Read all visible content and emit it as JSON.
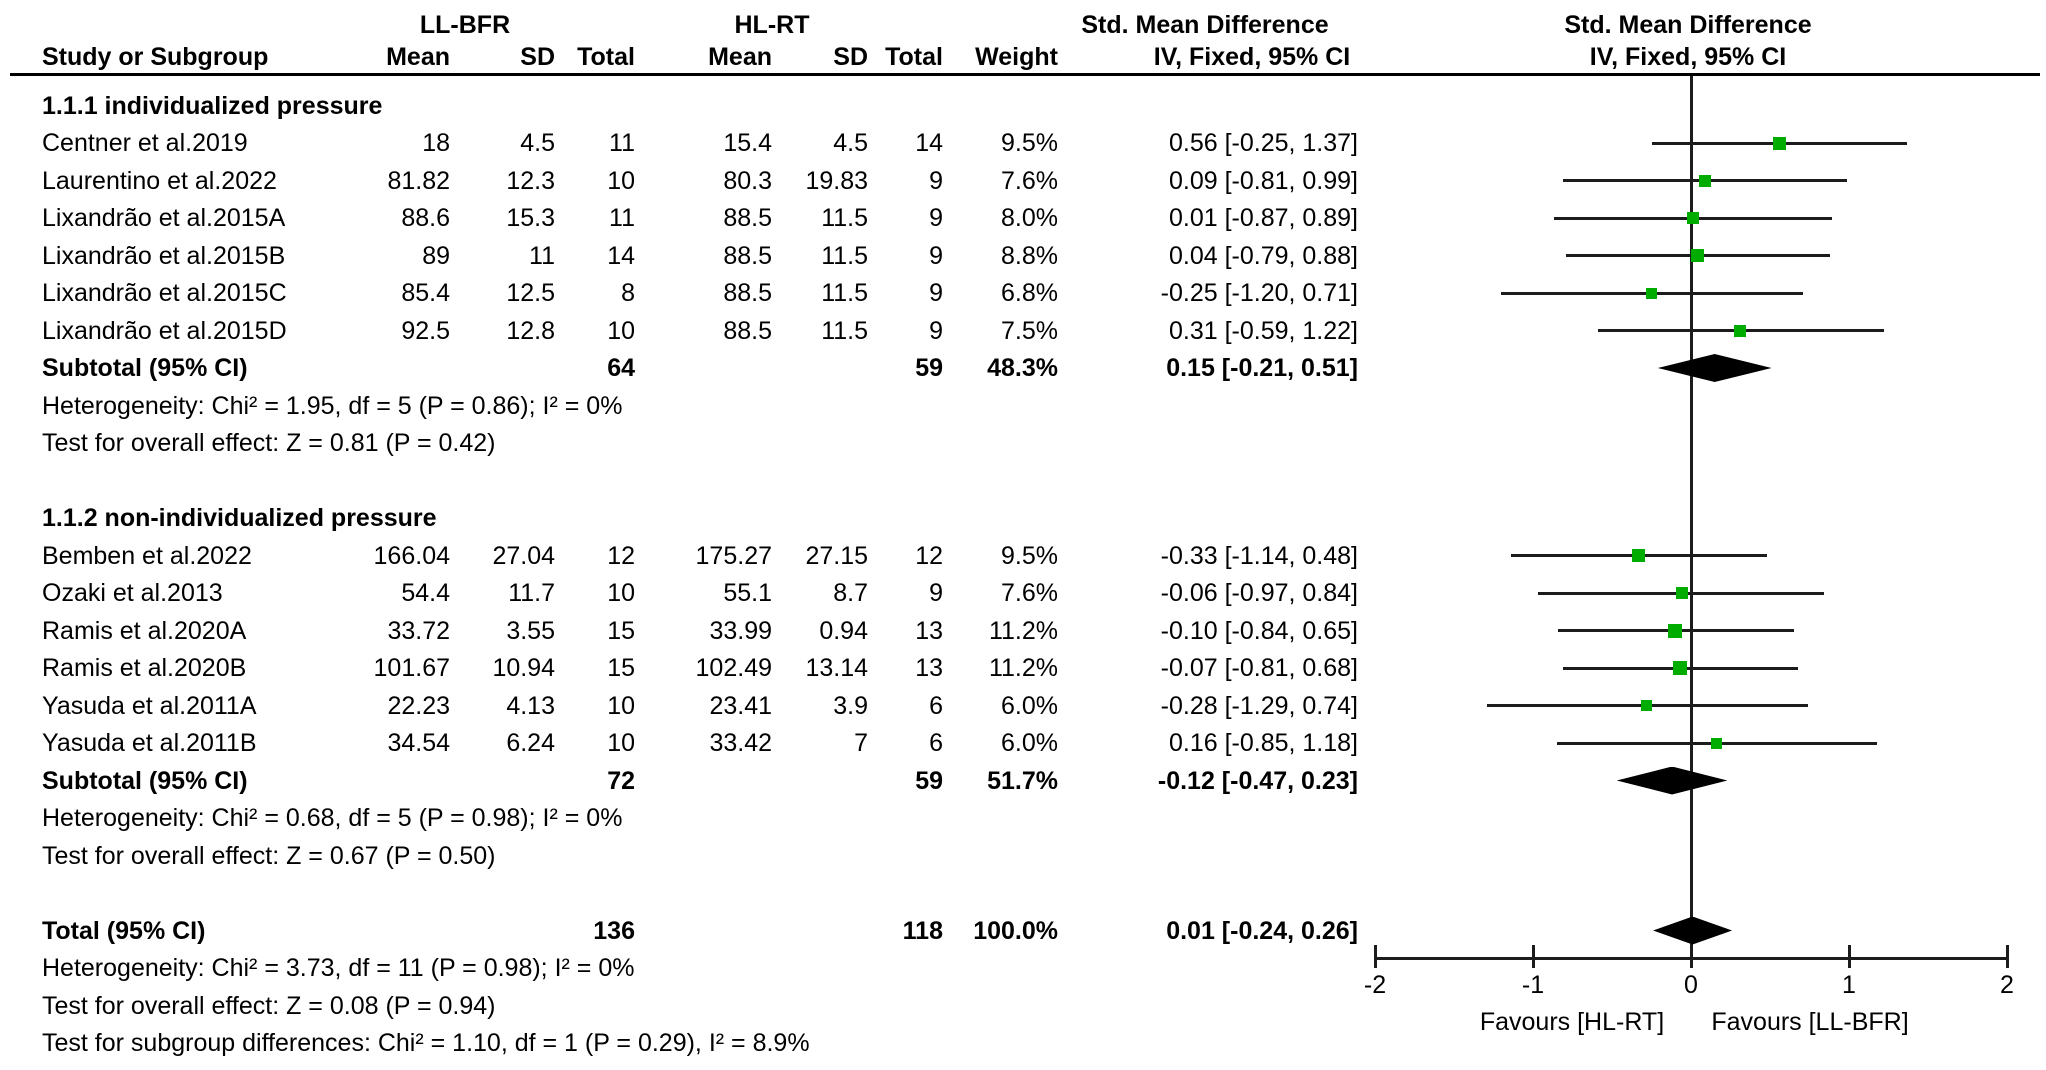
{
  "header": {
    "group1_label": "LL-BFR",
    "group2_label": "HL-RT",
    "study_col": "Study or Subgroup",
    "mean_col": "Mean",
    "sd_col": "SD",
    "total_col": "Total",
    "weight_col": "Weight",
    "smd_col_title": "Std. Mean Difference",
    "smd_col_subtitle": "IV, Fixed, 95% CI",
    "plot_col_title": "Std. Mean Difference",
    "plot_col_subtitle": "IV, Fixed, 95% CI"
  },
  "groups": [
    {
      "name": "1.1.1 individualized pressure",
      "studies": [
        {
          "name": "Centner et al.2019",
          "mean1": "18",
          "sd1": "4.5",
          "total1": "11",
          "mean2": "15.4",
          "sd2": "4.5",
          "total2": "14",
          "weight": "9.5%",
          "smd_text": "0.56 [-0.25, 1.37]",
          "est": 0.56,
          "lo": -0.25,
          "hi": 1.37,
          "weight_pct": 9.5
        },
        {
          "name": "Laurentino et al.2022",
          "mean1": "81.82",
          "sd1": "12.3",
          "total1": "10",
          "mean2": "80.3",
          "sd2": "19.83",
          "total2": "9",
          "weight": "7.6%",
          "smd_text": "0.09 [-0.81, 0.99]",
          "est": 0.09,
          "lo": -0.81,
          "hi": 0.99,
          "weight_pct": 7.6
        },
        {
          "name": "Lixandrão et al.2015A",
          "mean1": "88.6",
          "sd1": "15.3",
          "total1": "11",
          "mean2": "88.5",
          "sd2": "11.5",
          "total2": "9",
          "weight": "8.0%",
          "smd_text": "0.01 [-0.87, 0.89]",
          "est": 0.01,
          "lo": -0.87,
          "hi": 0.89,
          "weight_pct": 8.0
        },
        {
          "name": "Lixandrão et al.2015B",
          "mean1": "89",
          "sd1": "11",
          "total1": "14",
          "mean2": "88.5",
          "sd2": "11.5",
          "total2": "9",
          "weight": "8.8%",
          "smd_text": "0.04 [-0.79, 0.88]",
          "est": 0.04,
          "lo": -0.79,
          "hi": 0.88,
          "weight_pct": 8.8
        },
        {
          "name": "Lixandrão et al.2015C",
          "mean1": "85.4",
          "sd1": "12.5",
          "total1": "8",
          "mean2": "88.5",
          "sd2": "11.5",
          "total2": "9",
          "weight": "6.8%",
          "smd_text": "-0.25 [-1.20, 0.71]",
          "est": -0.25,
          "lo": -1.2,
          "hi": 0.71,
          "weight_pct": 6.8
        },
        {
          "name": "Lixandrão et al.2015D",
          "mean1": "92.5",
          "sd1": "12.8",
          "total1": "10",
          "mean2": "88.5",
          "sd2": "11.5",
          "total2": "9",
          "weight": "7.5%",
          "smd_text": "0.31 [-0.59, 1.22]",
          "est": 0.31,
          "lo": -0.59,
          "hi": 1.22,
          "weight_pct": 7.5
        }
      ],
      "subtotal": {
        "label": "Subtotal (95% CI)",
        "total1": "64",
        "total2": "59",
        "weight": "48.3%",
        "smd_text": "0.15 [-0.21, 0.51]",
        "est": 0.15,
        "lo": -0.21,
        "hi": 0.51
      },
      "heterogeneity": "Heterogeneity: Chi² = 1.95, df = 5 (P = 0.86); I² = 0%",
      "overall_effect": "Test for overall effect: Z = 0.81 (P = 0.42)"
    },
    {
      "name": "1.1.2 non-individualized pressure",
      "studies": [
        {
          "name": "Bemben et al.2022",
          "mean1": "166.04",
          "sd1": "27.04",
          "total1": "12",
          "mean2": "175.27",
          "sd2": "27.15",
          "total2": "12",
          "weight": "9.5%",
          "smd_text": "-0.33 [-1.14, 0.48]",
          "est": -0.33,
          "lo": -1.14,
          "hi": 0.48,
          "weight_pct": 9.5
        },
        {
          "name": "Ozaki et al.2013",
          "mean1": "54.4",
          "sd1": "11.7",
          "total1": "10",
          "mean2": "55.1",
          "sd2": "8.7",
          "total2": "9",
          "weight": "7.6%",
          "smd_text": "-0.06 [-0.97, 0.84]",
          "est": -0.06,
          "lo": -0.97,
          "hi": 0.84,
          "weight_pct": 7.6
        },
        {
          "name": "Ramis et al.2020A",
          "mean1": "33.72",
          "sd1": "3.55",
          "total1": "15",
          "mean2": "33.99",
          "sd2": "0.94",
          "total2": "13",
          "weight": "11.2%",
          "smd_text": "-0.10 [-0.84, 0.65]",
          "est": -0.1,
          "lo": -0.84,
          "hi": 0.65,
          "weight_pct": 11.2
        },
        {
          "name": "Ramis et al.2020B",
          "mean1": "101.67",
          "sd1": "10.94",
          "total1": "15",
          "mean2": "102.49",
          "sd2": "13.14",
          "total2": "13",
          "weight": "11.2%",
          "smd_text": "-0.07 [-0.81, 0.68]",
          "est": -0.07,
          "lo": -0.81,
          "hi": 0.68,
          "weight_pct": 11.2
        },
        {
          "name": "Yasuda et al.2011A",
          "mean1": "22.23",
          "sd1": "4.13",
          "total1": "10",
          "mean2": "23.41",
          "sd2": "3.9",
          "total2": "6",
          "weight": "6.0%",
          "smd_text": "-0.28 [-1.29, 0.74]",
          "est": -0.28,
          "lo": -1.29,
          "hi": 0.74,
          "weight_pct": 6.0
        },
        {
          "name": "Yasuda et al.2011B",
          "mean1": "34.54",
          "sd1": "6.24",
          "total1": "10",
          "mean2": "33.42",
          "sd2": "7",
          "total2": "6",
          "weight": "6.0%",
          "smd_text": "0.16 [-0.85, 1.18]",
          "est": 0.16,
          "lo": -0.85,
          "hi": 1.18,
          "weight_pct": 6.0
        }
      ],
      "subtotal": {
        "label": "Subtotal (95% CI)",
        "total1": "72",
        "total2": "59",
        "weight": "51.7%",
        "smd_text": "-0.12 [-0.47, 0.23]",
        "est": -0.12,
        "lo": -0.47,
        "hi": 0.23
      },
      "heterogeneity": "Heterogeneity: Chi² = 0.68, df = 5 (P = 0.98); I² = 0%",
      "overall_effect": "Test for overall effect: Z = 0.67 (P = 0.50)"
    }
  ],
  "total": {
    "label": "Total (95% CI)",
    "total1": "136",
    "total2": "118",
    "weight": "100.0%",
    "smd_text": "0.01 [-0.24, 0.26]",
    "est": 0.01,
    "lo": -0.24,
    "hi": 0.26
  },
  "footer": {
    "heterogeneity": "Heterogeneity: Chi² = 3.73, df = 11 (P = 0.98); I² = 0%",
    "overall_effect": "Test for overall effect: Z = 0.08 (P = 0.94)",
    "subgroup_diff": "Test for subgroup differences: Chi² = 1.10, df = 1 (P = 0.29), I² = 8.9%"
  },
  "axis": {
    "ticks": [
      "-2",
      "-1",
      "0",
      "1",
      "2"
    ],
    "tick_values": [
      -2,
      -1,
      0,
      1,
      2
    ],
    "favours_left": "Favours [HL-RT]",
    "favours_right": "Favours [LL-BFR]"
  },
  "colors": {
    "square": "#00AC00",
    "line": "#1c1c1c",
    "diamond": "#000000"
  },
  "chart_data": {
    "type": "scatter",
    "title": "Forest plot — Std. Mean Difference, IV, Fixed, 95% CI",
    "xlabel": "Std. Mean Difference",
    "xlim": [
      -2,
      2
    ],
    "x_ticks": [
      -2,
      -1,
      0,
      1,
      2
    ],
    "favours_left": "Favours [HL-RT]",
    "favours_right": "Favours [LL-BFR]",
    "series": [
      {
        "name": "1.1.1 individualized pressure",
        "points": [
          {
            "study": "Centner et al.2019",
            "smd": 0.56,
            "ci": [
              -0.25,
              1.37
            ],
            "weight_pct": 9.5
          },
          {
            "study": "Laurentino et al.2022",
            "smd": 0.09,
            "ci": [
              -0.81,
              0.99
            ],
            "weight_pct": 7.6
          },
          {
            "study": "Lixandrão et al.2015A",
            "smd": 0.01,
            "ci": [
              -0.87,
              0.89
            ],
            "weight_pct": 8.0
          },
          {
            "study": "Lixandrão et al.2015B",
            "smd": 0.04,
            "ci": [
              -0.79,
              0.88
            ],
            "weight_pct": 8.8
          },
          {
            "study": "Lixandrão et al.2015C",
            "smd": -0.25,
            "ci": [
              -1.2,
              0.71
            ],
            "weight_pct": 6.8
          },
          {
            "study": "Lixandrão et al.2015D",
            "smd": 0.31,
            "ci": [
              -0.59,
              1.22
            ],
            "weight_pct": 7.5
          }
        ],
        "subtotal": {
          "smd": 0.15,
          "ci": [
            -0.21,
            0.51
          ],
          "weight_pct": 48.3
        }
      },
      {
        "name": "1.1.2 non-individualized pressure",
        "points": [
          {
            "study": "Bemben et al.2022",
            "smd": -0.33,
            "ci": [
              -1.14,
              0.48
            ],
            "weight_pct": 9.5
          },
          {
            "study": "Ozaki et al.2013",
            "smd": -0.06,
            "ci": [
              -0.97,
              0.84
            ],
            "weight_pct": 7.6
          },
          {
            "study": "Ramis et al.2020A",
            "smd": -0.1,
            "ci": [
              -0.84,
              0.65
            ],
            "weight_pct": 11.2
          },
          {
            "study": "Ramis et al.2020B",
            "smd": -0.07,
            "ci": [
              -0.81,
              0.68
            ],
            "weight_pct": 11.2
          },
          {
            "study": "Yasuda et al.2011A",
            "smd": -0.28,
            "ci": [
              -1.29,
              0.74
            ],
            "weight_pct": 6.0
          },
          {
            "study": "Yasuda et al.2011B",
            "smd": 0.16,
            "ci": [
              -0.85,
              1.18
            ],
            "weight_pct": 6.0
          }
        ],
        "subtotal": {
          "smd": -0.12,
          "ci": [
            -0.47,
            0.23
          ],
          "weight_pct": 51.7
        }
      }
    ],
    "total": {
      "smd": 0.01,
      "ci": [
        -0.24,
        0.26
      ],
      "weight_pct": 100.0
    }
  }
}
